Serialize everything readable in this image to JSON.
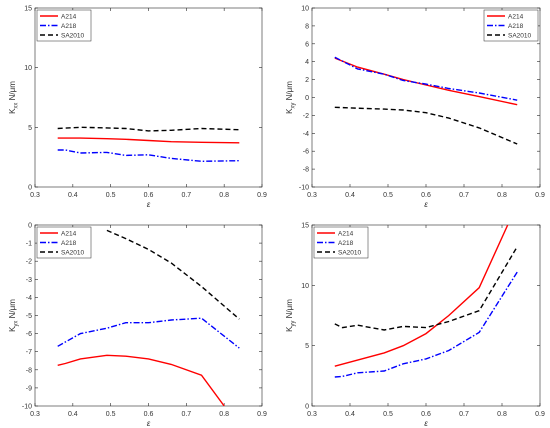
{
  "legend_style": {
    "A214": {
      "color": "#ff0000",
      "dash": "none"
    },
    "A218": {
      "color": "#0000ff",
      "dash": "dashdot"
    },
    "SA2010": {
      "color": "#000000",
      "dash": "dash"
    }
  },
  "chart_data": [
    {
      "type": "line",
      "xlabel": "ε",
      "ylabel_main": "K",
      "ylabel_sub": "xx",
      "ylabel_unit": " N/μm",
      "xlim": [
        0.3,
        0.9
      ],
      "ylim": [
        0,
        15
      ],
      "xticks": [
        "0.3",
        "0.4",
        "0.5",
        "0.6",
        "0.7",
        "0.8",
        "0.9"
      ],
      "yticks": [
        "0",
        "5",
        "10",
        "15"
      ],
      "legend": [
        "A214",
        "A218",
        "SA2010"
      ],
      "legend_position": "top-left",
      "series": [
        {
          "name": "A214",
          "x": [
            0.36,
            0.42,
            0.49,
            0.54,
            0.6,
            0.66,
            0.74,
            0.84
          ],
          "y": [
            4.1,
            4.1,
            4.05,
            4.0,
            3.9,
            3.8,
            3.75,
            3.7
          ]
        },
        {
          "name": "A218",
          "x": [
            0.36,
            0.38,
            0.42,
            0.49,
            0.54,
            0.6,
            0.66,
            0.74,
            0.84
          ],
          "y": [
            3.1,
            3.1,
            2.85,
            2.9,
            2.65,
            2.7,
            2.4,
            2.15,
            2.2
          ]
        },
        {
          "name": "SA2010",
          "x": [
            0.36,
            0.42,
            0.49,
            0.54,
            0.6,
            0.66,
            0.74,
            0.84
          ],
          "y": [
            4.9,
            5.0,
            4.95,
            4.9,
            4.7,
            4.75,
            4.9,
            4.8
          ]
        }
      ]
    },
    {
      "type": "line",
      "xlabel": "ε",
      "ylabel_main": "K",
      "ylabel_sub": "xy",
      "ylabel_unit": " N/μm",
      "xlim": [
        0.3,
        0.9
      ],
      "ylim": [
        -10,
        10
      ],
      "xticks": [
        "0.3",
        "0.4",
        "0.5",
        "0.6",
        "0.7",
        "0.8",
        "0.9"
      ],
      "yticks": [
        "-10",
        "-8",
        "-6",
        "-4",
        "-2",
        "0",
        "2",
        "4",
        "6",
        "8",
        "10"
      ],
      "legend": [
        "A214",
        "A218",
        "SA2010"
      ],
      "legend_position": "top-right",
      "series": [
        {
          "name": "A214",
          "x": [
            0.36,
            0.42,
            0.49,
            0.54,
            0.6,
            0.66,
            0.74,
            0.84
          ],
          "y": [
            4.4,
            3.4,
            2.6,
            2.0,
            1.4,
            0.8,
            0.1,
            -0.8
          ]
        },
        {
          "name": "A218",
          "x": [
            0.36,
            0.42,
            0.49,
            0.54,
            0.6,
            0.66,
            0.74,
            0.84
          ],
          "y": [
            4.5,
            3.2,
            2.6,
            1.9,
            1.5,
            1.0,
            0.5,
            -0.3
          ]
        },
        {
          "name": "SA2010",
          "x": [
            0.36,
            0.42,
            0.49,
            0.54,
            0.6,
            0.66,
            0.74,
            0.84
          ],
          "y": [
            -1.1,
            -1.2,
            -1.3,
            -1.4,
            -1.7,
            -2.3,
            -3.4,
            -5.2
          ]
        }
      ]
    },
    {
      "type": "line",
      "xlabel": "ε",
      "ylabel_main": "K",
      "ylabel_sub": "yx",
      "ylabel_unit": " N/μm",
      "xlim": [
        0.3,
        0.9
      ],
      "ylim": [
        -10,
        0
      ],
      "xticks": [
        "0.3",
        "0.4",
        "0.5",
        "0.6",
        "0.7",
        "0.8",
        "0.9"
      ],
      "yticks": [
        "-10",
        "-9",
        "-8",
        "-7",
        "-6",
        "-5",
        "-4",
        "-3",
        "-2",
        "-1",
        "0"
      ],
      "legend": [
        "A214",
        "A218",
        "SA2010"
      ],
      "legend_position": "top-left",
      "series": [
        {
          "name": "A214",
          "x": [
            0.36,
            0.38,
            0.42,
            0.49,
            0.54,
            0.6,
            0.66,
            0.74,
            0.8
          ],
          "y": [
            -7.75,
            -7.65,
            -7.4,
            -7.2,
            -7.25,
            -7.4,
            -7.7,
            -8.3,
            -10.0
          ]
        },
        {
          "name": "A218",
          "x": [
            0.36,
            0.42,
            0.49,
            0.54,
            0.6,
            0.66,
            0.74,
            0.84
          ],
          "y": [
            -6.7,
            -6.0,
            -5.7,
            -5.4,
            -5.4,
            -5.25,
            -5.15,
            -6.8
          ]
        },
        {
          "name": "SA2010",
          "x": [
            0.49,
            0.54,
            0.6,
            0.66,
            0.74,
            0.84
          ],
          "y": [
            -0.3,
            -0.75,
            -1.35,
            -2.1,
            -3.4,
            -5.2
          ]
        }
      ]
    },
    {
      "type": "line",
      "xlabel": "ε",
      "ylabel_main": "K",
      "ylabel_sub": "yy",
      "ylabel_unit": " N/μm",
      "xlim": [
        0.3,
        0.9
      ],
      "ylim": [
        0,
        15
      ],
      "xticks": [
        "0.3",
        "0.4",
        "0.5",
        "0.6",
        "0.7",
        "0.8",
        "0.9"
      ],
      "yticks": [
        "0",
        "5",
        "10",
        "15"
      ],
      "legend": [
        "A214",
        "A218",
        "SA2010"
      ],
      "legend_position": "top-left",
      "series": [
        {
          "name": "A214",
          "x": [
            0.36,
            0.42,
            0.49,
            0.54,
            0.6,
            0.66,
            0.74,
            0.815
          ],
          "y": [
            3.3,
            3.8,
            4.4,
            5.0,
            6.0,
            7.5,
            9.8,
            15.0
          ]
        },
        {
          "name": "A218",
          "x": [
            0.36,
            0.38,
            0.42,
            0.49,
            0.54,
            0.6,
            0.66,
            0.74,
            0.84
          ],
          "y": [
            2.4,
            2.45,
            2.75,
            2.9,
            3.5,
            3.9,
            4.6,
            6.1,
            11.1
          ]
        },
        {
          "name": "SA2010",
          "x": [
            0.36,
            0.38,
            0.42,
            0.49,
            0.54,
            0.6,
            0.66,
            0.74,
            0.84
          ],
          "y": [
            6.8,
            6.5,
            6.7,
            6.3,
            6.6,
            6.5,
            7.0,
            7.9,
            13.2
          ]
        }
      ]
    }
  ]
}
